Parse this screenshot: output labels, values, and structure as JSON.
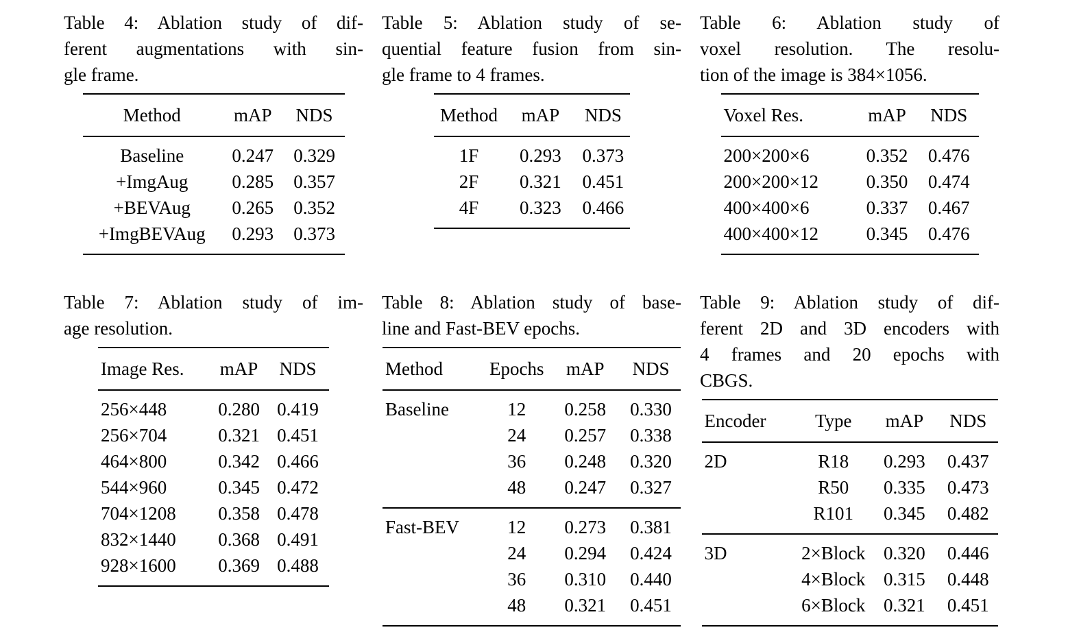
{
  "page": {
    "background_color": "#ffffff",
    "text_color": "#000000"
  },
  "tables": [
    {
      "title": "Table 4",
      "caption": "Table 4: Ablation study of different augmentations with single frame.",
      "caption_lines": [
        "Table 4: Ablation study of dif-",
        "ferent augmentations with sin-",
        "gle frame."
      ],
      "columns": [
        "Method",
        "mAP",
        "NDS"
      ],
      "groups": [
        {
          "rows": [
            [
              "Baseline",
              "0.247",
              "0.329"
            ],
            [
              "+ImgAug",
              "0.285",
              "0.357"
            ],
            [
              "+BEVAug",
              "0.265",
              "0.352"
            ],
            [
              "+ImgBEVAug",
              "0.293",
              "0.373"
            ]
          ]
        }
      ]
    },
    {
      "title": "Table 5",
      "caption": "Table 5: Ablation study of sequential feature fusion from single frame to 4 frames.",
      "caption_lines": [
        "Table 5: Ablation study of se-",
        "quential feature fusion from sin-",
        "gle frame to 4 frames."
      ],
      "columns": [
        "Method",
        "mAP",
        "NDS"
      ],
      "groups": [
        {
          "rows": [
            [
              "1F",
              "0.293",
              "0.373"
            ],
            [
              "2F",
              "0.321",
              "0.451"
            ],
            [
              "4F",
              "0.323",
              "0.466"
            ]
          ]
        }
      ]
    },
    {
      "title": "Table 6",
      "caption": "Table 6: Ablation study of voxel resolution. The resolution of the image is 384×1056.",
      "caption_lines": [
        "Table 6: Ablation study of",
        "voxel resolution. The resolu-",
        "tion of the image is 384×1056."
      ],
      "columns": [
        "Voxel Res.",
        "mAP",
        "NDS"
      ],
      "groups": [
        {
          "rows": [
            [
              "200×200×6",
              "0.352",
              "0.476"
            ],
            [
              "200×200×12",
              "0.350",
              "0.474"
            ],
            [
              "400×400×6",
              "0.337",
              "0.467"
            ],
            [
              "400×400×12",
              "0.345",
              "0.476"
            ]
          ]
        }
      ]
    },
    {
      "title": "Table 7",
      "caption": "Table 7: Ablation study of image resolution.",
      "caption_lines": [
        "Table 7: Ablation study of im-",
        "age resolution."
      ],
      "columns": [
        "Image Res.",
        "mAP",
        "NDS"
      ],
      "groups": [
        {
          "rows": [
            [
              "256×448",
              "0.280",
              "0.419"
            ],
            [
              "256×704",
              "0.321",
              "0.451"
            ],
            [
              "464×800",
              "0.342",
              "0.466"
            ],
            [
              "544×960",
              "0.345",
              "0.472"
            ],
            [
              "704×1208",
              "0.358",
              "0.478"
            ],
            [
              "832×1440",
              "0.368",
              "0.491"
            ],
            [
              "928×1600",
              "0.369",
              "0.488"
            ]
          ]
        }
      ]
    },
    {
      "title": "Table 8",
      "caption": "Table 8: Ablation study of baseline and Fast-BEV epochs.",
      "caption_lines": [
        "Table 8: Ablation study of base-",
        "line and Fast-BEV epochs."
      ],
      "columns": [
        "Method",
        "Epochs",
        "mAP",
        "NDS"
      ],
      "groups": [
        {
          "rows": [
            [
              "Baseline",
              "12",
              "0.258",
              "0.330"
            ],
            [
              "",
              "24",
              "0.257",
              "0.338"
            ],
            [
              "",
              "36",
              "0.248",
              "0.320"
            ],
            [
              "",
              "48",
              "0.247",
              "0.327"
            ]
          ]
        },
        {
          "rows": [
            [
              "Fast-BEV",
              "12",
              "0.273",
              "0.381"
            ],
            [
              "",
              "24",
              "0.294",
              "0.424"
            ],
            [
              "",
              "36",
              "0.310",
              "0.440"
            ],
            [
              "",
              "48",
              "0.321",
              "0.451"
            ]
          ]
        }
      ]
    },
    {
      "title": "Table 9",
      "caption": "Table 9: Ablation study of different 2D and 3D encoders with 4 frames and 20 epochs with CBGS.",
      "caption_lines": [
        "Table 9: Ablation study of dif-",
        "ferent 2D and 3D encoders with",
        "4 frames and 20 epochs with",
        "CBGS."
      ],
      "columns": [
        "Encoder",
        "Type",
        "mAP",
        "NDS"
      ],
      "groups": [
        {
          "rows": [
            [
              "2D",
              "R18",
              "0.293",
              "0.437"
            ],
            [
              "",
              "R50",
              "0.335",
              "0.473"
            ],
            [
              "",
              "R101",
              "0.345",
              "0.482"
            ]
          ]
        },
        {
          "rows": [
            [
              "3D",
              "2×Block",
              "0.320",
              "0.446"
            ],
            [
              "",
              "4×Block",
              "0.315",
              "0.448"
            ],
            [
              "",
              "6×Block",
              "0.321",
              "0.451"
            ]
          ]
        }
      ]
    }
  ]
}
